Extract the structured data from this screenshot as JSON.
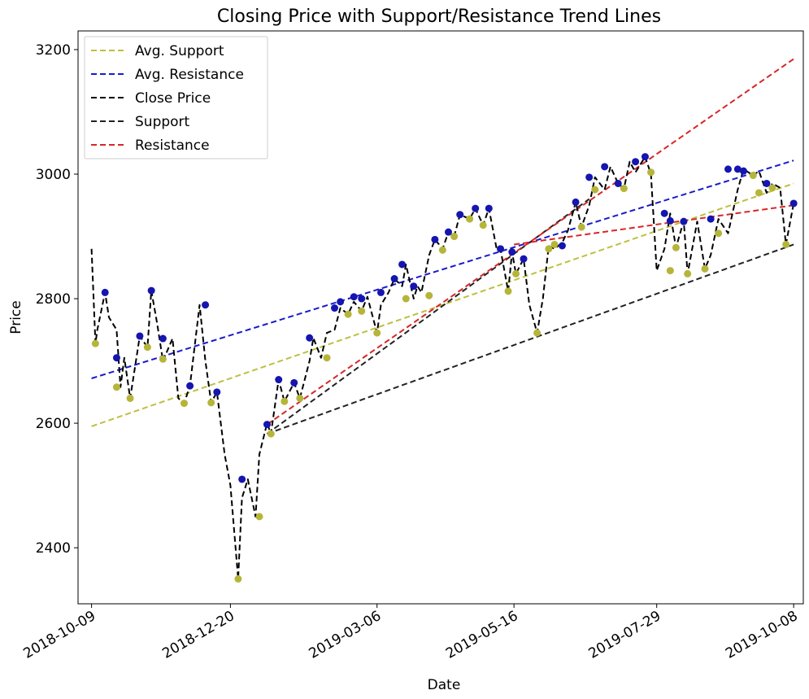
{
  "chart_data": {
    "type": "line",
    "title": "Closing Price with Support/Resistance Trend Lines",
    "xlabel": "Date",
    "ylabel": "Price",
    "xlim": [
      "2018-10-02",
      "2019-10-13"
    ],
    "ylim": [
      2310,
      3230
    ],
    "x_ticks": [
      "2018-10-09",
      "2018-12-20",
      "2019-03-06",
      "2019-05-16",
      "2019-07-29",
      "2019-10-08"
    ],
    "y_ticks": [
      2400,
      2600,
      2800,
      3000,
      3200
    ],
    "legend": {
      "position": "top-left",
      "entries": [
        "Avg. Support",
        "Avg. Resistance",
        "Close Price",
        "Support",
        "Resistance"
      ]
    },
    "colors": {
      "avg_support": "#bfbf3f",
      "avg_resistance": "#1a1acc",
      "close": "#000000",
      "support": "#222222",
      "resistance": "#d62728",
      "support_points": "#b5b53a",
      "resistance_points": "#1515b0"
    },
    "close_price": {
      "name": "Close Price",
      "x": [
        "2018-10-09",
        "2018-10-11",
        "2018-10-12",
        "2018-10-16",
        "2018-10-18",
        "2018-10-22",
        "2018-10-24",
        "2018-10-26",
        "2018-10-29",
        "2018-11-01",
        "2018-11-03",
        "2018-11-07",
        "2018-11-09",
        "2018-11-12",
        "2018-11-15",
        "2018-11-20",
        "2018-11-23",
        "2018-11-26",
        "2018-11-29",
        "2018-12-04",
        "2018-12-07",
        "2018-12-10",
        "2018-12-13",
        "2018-12-17",
        "2018-12-20",
        "2018-12-24",
        "2018-12-26",
        "2018-12-29",
        "2019-01-02",
        "2019-01-04",
        "2019-01-08",
        "2019-01-10",
        "2019-01-14",
        "2019-01-17",
        "2019-01-22",
        "2019-01-25",
        "2019-01-30",
        "2019-02-01",
        "2019-02-05",
        "2019-02-08",
        "2019-02-12",
        "2019-02-15",
        "2019-02-19",
        "2019-02-22",
        "2019-02-26",
        "2019-03-01",
        "2019-03-06",
        "2019-03-08",
        "2019-03-12",
        "2019-03-15",
        "2019-03-19",
        "2019-03-21",
        "2019-03-25",
        "2019-03-27",
        "2019-03-29",
        "2019-04-02",
        "2019-04-05",
        "2019-04-09",
        "2019-04-12",
        "2019-04-15",
        "2019-04-18",
        "2019-04-23",
        "2019-04-26",
        "2019-04-30",
        "2019-05-03",
        "2019-05-07",
        "2019-05-09",
        "2019-05-13",
        "2019-05-15",
        "2019-05-17",
        "2019-05-21",
        "2019-05-24",
        "2019-05-28",
        "2019-05-31",
        "2019-06-03",
        "2019-06-06",
        "2019-06-10",
        "2019-06-13",
        "2019-06-17",
        "2019-06-20",
        "2019-06-24",
        "2019-06-27",
        "2019-07-02",
        "2019-07-05",
        "2019-07-09",
        "2019-07-12",
        "2019-07-15",
        "2019-07-18",
        "2019-07-23",
        "2019-07-26",
        "2019-07-29",
        "2019-08-02",
        "2019-08-05",
        "2019-08-08",
        "2019-08-12",
        "2019-08-14",
        "2019-08-19",
        "2019-08-23",
        "2019-08-26",
        "2019-08-30",
        "2019-09-04",
        "2019-09-09",
        "2019-09-12",
        "2019-09-17",
        "2019-09-20",
        "2019-09-24",
        "2019-09-27",
        "2019-10-01",
        "2019-10-04",
        "2019-10-08"
      ],
      "values": [
        2880,
        2728,
        2750,
        2810,
        2770,
        2750,
        2658,
        2705,
        2640,
        2700,
        2740,
        2722,
        2813,
        2760,
        2700,
        2736,
        2640,
        2632,
        2660,
        2790,
        2700,
        2633,
        2650,
        2550,
        2500,
        2350,
        2480,
        2510,
        2450,
        2550,
        2600,
        2583,
        2670,
        2635,
        2665,
        2640,
        2700,
        2737,
        2705,
        2745,
        2750,
        2785,
        2775,
        2795,
        2780,
        2803,
        2745,
        2790,
        2810,
        2832,
        2820,
        2855,
        2800,
        2820,
        2810,
        2870,
        2895,
        2880,
        2907,
        2900,
        2935,
        2928,
        2945,
        2918,
        2945,
        2880,
        2880,
        2812,
        2875,
        2840,
        2864,
        2790,
        2745,
        2800,
        2885,
        2880,
        2890,
        2910,
        2955,
        2915,
        2950,
        2995,
        2975,
        3012,
        2985,
        2977,
        3020,
        3003,
        3028,
        3000,
        2845,
        2880,
        2937,
        2882,
        2925,
        2840,
        2924,
        2848,
        2870,
        2928,
        2905,
        2975,
        3008,
        2998,
        3005,
        2970,
        2985,
        2978,
        2887,
        2953
      ]
    },
    "support_points": {
      "x": [
        "2018-10-11",
        "2018-10-22",
        "2018-10-29",
        "2018-11-07",
        "2018-11-15",
        "2018-11-26",
        "2018-12-10",
        "2018-12-24",
        "2019-01-04",
        "2019-01-10",
        "2019-01-17",
        "2019-01-25",
        "2019-02-08",
        "2019-02-19",
        "2019-02-26",
        "2019-03-06",
        "2019-03-21",
        "2019-04-02",
        "2019-04-09",
        "2019-04-15",
        "2019-04-23",
        "2019-04-30",
        "2019-05-09",
        "2019-05-13",
        "2019-05-17",
        "2019-05-28",
        "2019-06-03",
        "2019-06-06",
        "2019-06-20",
        "2019-06-27",
        "2019-07-12",
        "2019-07-26",
        "2019-08-05",
        "2019-08-08",
        "2019-08-14",
        "2019-08-23",
        "2019-08-30",
        "2019-09-17",
        "2019-09-20",
        "2019-09-27",
        "2019-10-04",
        "2019-10-08"
      ],
      "values": [
        2728,
        2658,
        2640,
        2722,
        2703,
        2632,
        2633,
        2350,
        2450,
        2583,
        2635,
        2640,
        2705,
        2775,
        2780,
        2745,
        2800,
        2805,
        2878,
        2900,
        2928,
        2918,
        2880,
        2812,
        2840,
        2745,
        2880,
        2887,
        2915,
        2975,
        2977,
        3003,
        2845,
        2882,
        2840,
        2848,
        2905,
        2998,
        2970,
        2978,
        2887,
        2953
      ]
    },
    "resistance_points": {
      "x": [
        "2018-10-16",
        "2018-10-22",
        "2018-11-03",
        "2018-11-09",
        "2018-11-15",
        "2018-11-29",
        "2018-12-07",
        "2018-12-13",
        "2018-12-26",
        "2019-01-08",
        "2019-01-14",
        "2019-01-22",
        "2019-01-30",
        "2019-02-12",
        "2019-02-15",
        "2019-02-22",
        "2019-02-26",
        "2019-03-08",
        "2019-03-15",
        "2019-03-19",
        "2019-03-25",
        "2019-04-05",
        "2019-04-12",
        "2019-04-18",
        "2019-04-26",
        "2019-05-03",
        "2019-05-09",
        "2019-05-15",
        "2019-05-21",
        "2019-06-10",
        "2019-06-17",
        "2019-06-24",
        "2019-07-02",
        "2019-07-09",
        "2019-07-18",
        "2019-07-23",
        "2019-08-02",
        "2019-08-05",
        "2019-08-12",
        "2019-08-26",
        "2019-09-04",
        "2019-09-09",
        "2019-09-12",
        "2019-09-24",
        "2019-10-08"
      ],
      "values": [
        2810,
        2705,
        2740,
        2813,
        2736,
        2660,
        2790,
        2650,
        2510,
        2598,
        2670,
        2665,
        2737,
        2785,
        2795,
        2803,
        2800,
        2810,
        2832,
        2855,
        2820,
        2895,
        2907,
        2935,
        2945,
        2945,
        2880,
        2875,
        2864,
        2885,
        2955,
        2995,
        3012,
        2985,
        3020,
        3028,
        2937,
        2925,
        2924,
        2928,
        3008,
        3008,
        3005,
        2985,
        2953
      ]
    },
    "trend_lines": [
      {
        "name": "Avg. Support",
        "x": [
          "2018-10-09",
          "2019-10-08"
        ],
        "values": [
          2595,
          2985
        ]
      },
      {
        "name": "Avg. Resistance",
        "x": [
          "2018-10-09",
          "2019-10-08"
        ],
        "values": [
          2672,
          3022
        ]
      },
      {
        "name": "Support",
        "x": [
          "2019-01-08",
          "2019-10-08"
        ],
        "values": [
          2583,
          2887
        ]
      },
      {
        "name": "Support",
        "x": [
          "2019-01-08",
          "2019-06-24"
        ],
        "values": [
          2583,
          2960
        ]
      },
      {
        "name": "Resistance",
        "x": [
          "2019-01-08",
          "2019-10-08"
        ],
        "values": [
          2598,
          3185
        ]
      },
      {
        "name": "Resistance",
        "x": [
          "2019-05-16",
          "2019-10-08"
        ],
        "values": [
          2887,
          2950
        ]
      }
    ]
  }
}
